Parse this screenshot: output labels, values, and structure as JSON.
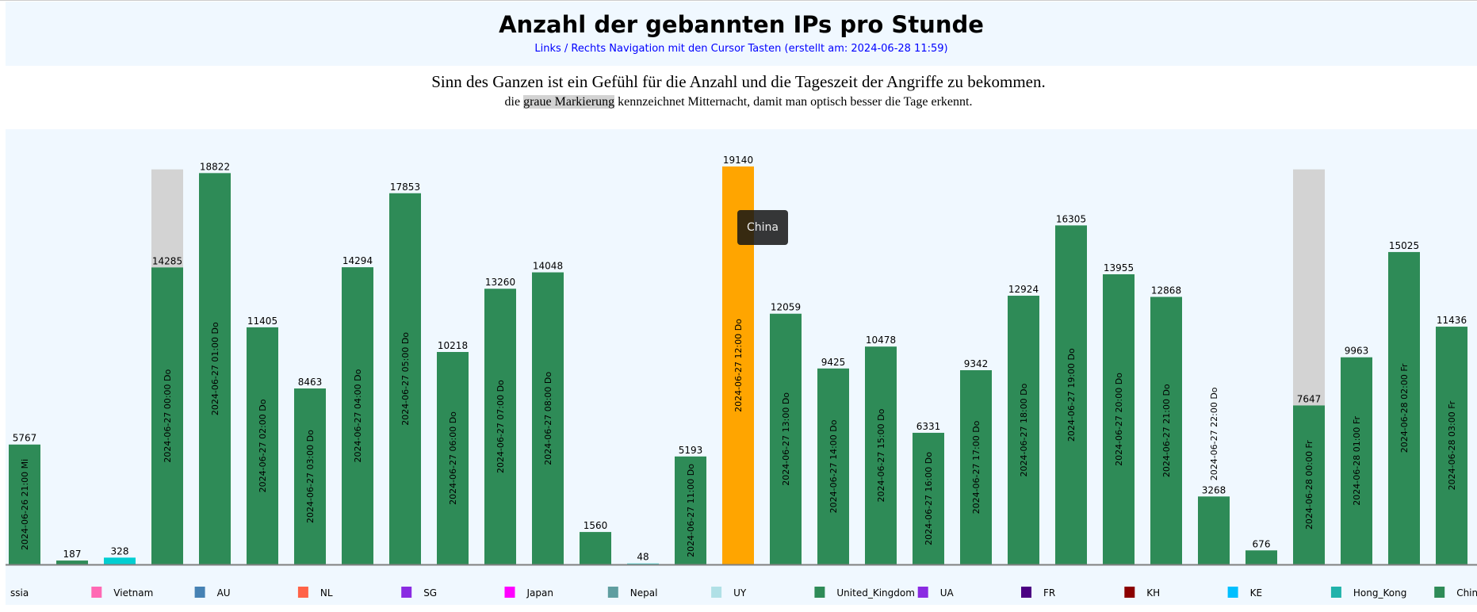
{
  "header": {
    "title": "Anzahl der gebannten IPs pro Stunde",
    "subtitle": "Links / Rechts Navigation mit den Cursor Tasten (erstellt am: 2024-06-28 11:59)"
  },
  "intro": {
    "line1": "Sinn des Ganzen ist ein Gefühl für die Anzahl und die Tageszeit der Angriffe zu bekommen.",
    "line2_pre": "die ",
    "line2_highlight": "graue Markierung",
    "line2_post": " kennzeichnet Mitternacht, damit man optisch besser die Tage erkennt."
  },
  "tooltip": {
    "text": "China"
  },
  "chart_data": {
    "type": "bar",
    "ylim": [
      0,
      19140
    ],
    "grid": false,
    "legend_placement": "bottom",
    "highlight_color": "#FFA500",
    "midnight_marker_color": "#D3D3D3",
    "bars": [
      {
        "label": "2024-06-26 21:00 Mi",
        "value": 5767,
        "color": "#2E8B57"
      },
      {
        "label": "",
        "value": 187,
        "color": "#2E8B57"
      },
      {
        "label": "",
        "value": 328,
        "color": "#00CED1"
      },
      {
        "label": "2024-06-27 00:00 Do",
        "value": 14285,
        "color": "#2E8B57",
        "midnight": true
      },
      {
        "label": "2024-06-27 01:00 Do",
        "value": 18822,
        "color": "#2E8B57"
      },
      {
        "label": "2024-06-27 02:00 Do",
        "value": 11405,
        "color": "#2E8B57"
      },
      {
        "label": "2024-06-27 03:00 Do",
        "value": 8463,
        "color": "#2E8B57"
      },
      {
        "label": "2024-06-27 04:00 Do",
        "value": 14294,
        "color": "#2E8B57"
      },
      {
        "label": "2024-06-27 05:00 Do",
        "value": 17853,
        "color": "#2E8B57"
      },
      {
        "label": "2024-06-27 06:00 Do",
        "value": 10218,
        "color": "#2E8B57"
      },
      {
        "label": "2024-06-27 07:00 Do",
        "value": 13260,
        "color": "#2E8B57"
      },
      {
        "label": "2024-06-27 08:00 Do",
        "value": 14048,
        "color": "#2E8B57"
      },
      {
        "label": "",
        "value": 1560,
        "color": "#2E8B57"
      },
      {
        "label": "",
        "value": 48,
        "color": "#48D1CC"
      },
      {
        "label": "2024-06-27 11:00 Do",
        "value": 5193,
        "color": "#2E8B57"
      },
      {
        "label": "2024-06-27 12:00 Do",
        "value": 19140,
        "color": "#FFA500",
        "highlighted": true
      },
      {
        "label": "2024-06-27 13:00 Do",
        "value": 12059,
        "color": "#2E8B57"
      },
      {
        "label": "2024-06-27 14:00 Do",
        "value": 9425,
        "color": "#2E8B57"
      },
      {
        "label": "2024-06-27 15:00 Do",
        "value": 10478,
        "color": "#2E8B57"
      },
      {
        "label": "2024-06-27 16:00 Do",
        "value": 6331,
        "color": "#2E8B57"
      },
      {
        "label": "2024-06-27 17:00 Do",
        "value": 9342,
        "color": "#2E8B57"
      },
      {
        "label": "2024-06-27 18:00 Do",
        "value": 12924,
        "color": "#2E8B57"
      },
      {
        "label": "2024-06-27 19:00 Do",
        "value": 16305,
        "color": "#2E8B57"
      },
      {
        "label": "2024-06-27 20:00 Do",
        "value": 13955,
        "color": "#2E8B57"
      },
      {
        "label": "2024-06-27 21:00 Do",
        "value": 12868,
        "color": "#2E8B57"
      },
      {
        "label": "2024-06-27 22:00 Do",
        "value": 3268,
        "color": "#2E8B57"
      },
      {
        "label": "",
        "value": 676,
        "color": "#2E8B57"
      },
      {
        "label": "2024-06-28 00:00 Fr",
        "value": 7647,
        "color": "#2E8B57",
        "midnight": true
      },
      {
        "label": "2024-06-28 01:00 Fr",
        "value": 9963,
        "color": "#2E8B57"
      },
      {
        "label": "2024-06-28 02:00 Fr",
        "value": 15025,
        "color": "#2E8B57"
      },
      {
        "label": "2024-06-28 03:00 Fr",
        "value": 11436,
        "color": "#2E8B57"
      }
    ],
    "legend": [
      {
        "name": "ssia",
        "color": ""
      },
      {
        "name": "Vietnam",
        "color": "#FF69B4"
      },
      {
        "name": "AU",
        "color": "#4682B4"
      },
      {
        "name": "NL",
        "color": "#FF6347"
      },
      {
        "name": "SG",
        "color": "#8A2BE2"
      },
      {
        "name": "Japan",
        "color": "#FF00FF"
      },
      {
        "name": "Nepal",
        "color": "#5F9EA0"
      },
      {
        "name": "UY",
        "color": "#B0E0E6"
      },
      {
        "name": "United_Kingdom",
        "color": "#2E8B57"
      },
      {
        "name": "UA",
        "color": "#8A2BE2"
      },
      {
        "name": "FR",
        "color": "#4B0082"
      },
      {
        "name": "KH",
        "color": "#8B0000"
      },
      {
        "name": "KE",
        "color": "#00BFFF"
      },
      {
        "name": "Hong_Kong",
        "color": "#20B2AA"
      },
      {
        "name": "China",
        "color": "#2E8B57"
      }
    ]
  }
}
